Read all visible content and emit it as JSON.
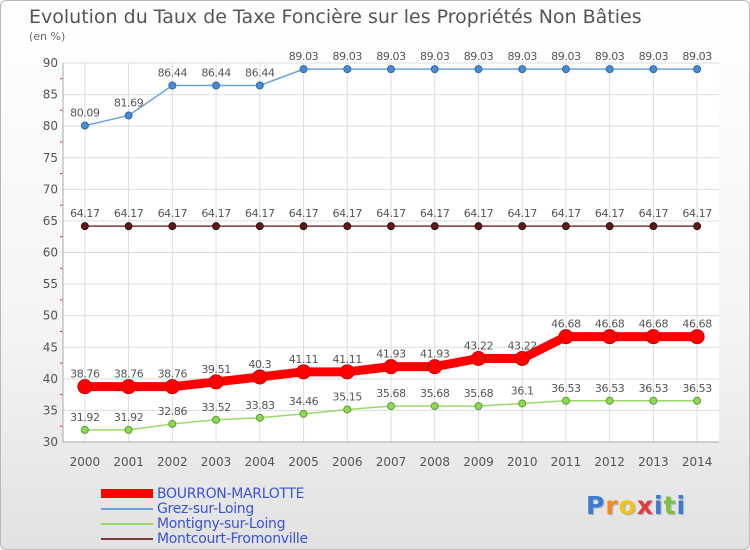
{
  "chart_data": {
    "type": "line",
    "title": "Evolution du Taux de Taxe Foncière sur les Propriétés Non Bâties",
    "ylabel": "(en %)",
    "xlabel": "",
    "ylim": [
      30,
      90
    ],
    "yticks": [
      "30",
      "35",
      "40",
      "45",
      "50",
      "55",
      "60",
      "65",
      "70",
      "75",
      "80",
      "85",
      "90"
    ],
    "x": [
      "2000",
      "2001",
      "2002",
      "2003",
      "2004",
      "2005",
      "2006",
      "2007",
      "2008",
      "2009",
      "2010",
      "2011",
      "2012",
      "2013",
      "2014"
    ],
    "series": [
      {
        "name": "BOURRON-MARLOTTE",
        "color": "#ff0000",
        "values": [
          38.76,
          38.76,
          38.76,
          39.51,
          40.3,
          41.11,
          41.11,
          41.93,
          41.93,
          43.22,
          43.22,
          46.68,
          46.68,
          46.68,
          46.68
        ],
        "labels": [
          "38.76",
          "38.76",
          "38.76",
          "39.51",
          "40.3",
          "41.11",
          "41.11",
          "41.93",
          "41.93",
          "43.22",
          "43.22",
          "46.68",
          "46.68",
          "46.68",
          "46.68"
        ]
      },
      {
        "name": "Grez-sur-Loing",
        "color": "#6fa3d8",
        "values": [
          80.09,
          81.69,
          86.44,
          86.44,
          86.44,
          89.03,
          89.03,
          89.03,
          89.03,
          89.03,
          89.03,
          89.03,
          89.03,
          89.03,
          89.03
        ],
        "labels": [
          "80.09",
          "81.69",
          "86.44",
          "86.44",
          "86.44",
          "89.03",
          "89.03",
          "89.03",
          "89.03",
          "89.03",
          "89.03",
          "89.03",
          "89.03",
          "89.03",
          "89.03"
        ]
      },
      {
        "name": "Montigny-sur-Loing",
        "color": "#99d96a",
        "values": [
          31.92,
          31.92,
          32.86,
          33.52,
          33.83,
          34.46,
          35.15,
          35.68,
          35.68,
          35.68,
          36.1,
          36.53,
          36.53,
          36.53,
          36.53
        ],
        "labels": [
          "31.92",
          "31.92",
          "32.86",
          "33.52",
          "33.83",
          "34.46",
          "35.15",
          "35.68",
          "35.68",
          "35.68",
          "36.1",
          "36.53",
          "36.53",
          "36.53",
          "36.53"
        ]
      },
      {
        "name": "Montcourt-Fromonville",
        "color": "#7a3a3a",
        "values": [
          64.17,
          64.17,
          64.17,
          64.17,
          64.17,
          64.17,
          64.17,
          64.17,
          64.17,
          64.17,
          64.17,
          64.17,
          64.17,
          64.17,
          64.17
        ],
        "labels": [
          "64.17",
          "64.17",
          "64.17",
          "64.17",
          "64.17",
          "64.17",
          "64.17",
          "64.17",
          "64.17",
          "64.17",
          "64.17",
          "64.17",
          "64.17",
          "64.17",
          "64.17"
        ]
      }
    ]
  },
  "logo": {
    "letters": [
      "P",
      "r",
      "o",
      "x",
      "i",
      "t",
      "i"
    ],
    "colors": [
      "#3c7bd1",
      "#f28c1c",
      "#f2c21c",
      "#e03a3a",
      "#3c7bd1",
      "#7cc242",
      "#3c7bd1"
    ]
  }
}
